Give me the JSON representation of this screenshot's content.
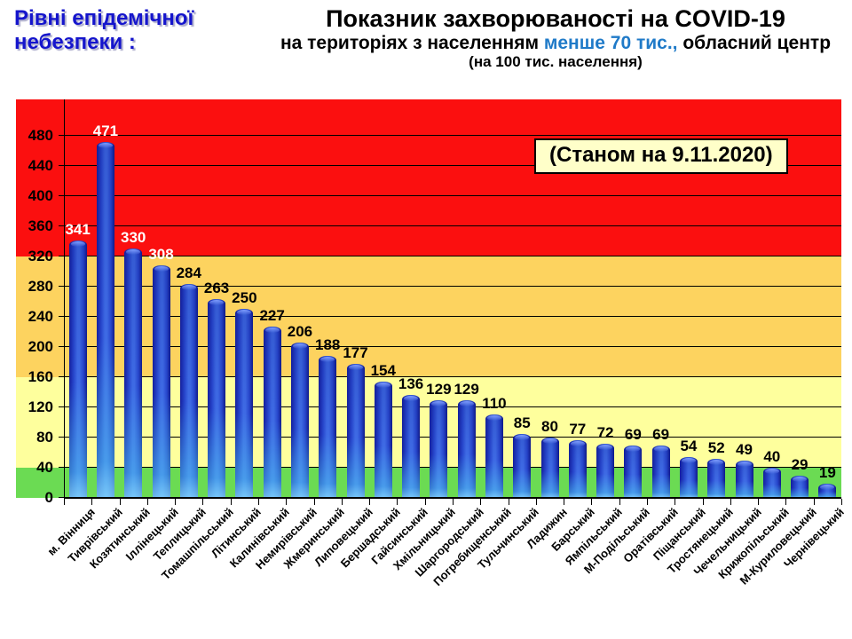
{
  "header": {
    "risk_label_line1": "Рівні епідемічної",
    "risk_label_line2": "небезпеки :",
    "risk_label_color": "#1515cc",
    "title": "Показник захворюваності на COVID-19",
    "subtitle_prefix": "на територіях з населенням ",
    "subtitle_highlight": "менше 70 тис.,",
    "subtitle_suffix": " обласний центр",
    "subtitle_highlight_color": "#1f7ac8",
    "subtitle_note": "(на 100  тис. населення)"
  },
  "annotation": {
    "date_label": "(Станом на 9.11.2020)",
    "bg_color": "#ffffc9"
  },
  "chart_data": {
    "type": "bar",
    "title": "Показник захворюваності на COVID-19 на територіях з населенням менше 70 тис., обласний центр (на 100 тис. населення)",
    "annotation": "(Станом на 9.11.2020)",
    "categories": [
      "м. Вінниця",
      "Тиврівський",
      "Козятинський",
      "Іллінецький",
      "Теплицький",
      "Томашпільський",
      "Літинський",
      "Калинівський",
      "Немирівський",
      "Жмеринський",
      "Липовецький",
      "Бершадський",
      "Гайсинський",
      "Хмільницький",
      "Шаргородський",
      "Погребищенський",
      "Тульчинський",
      "Ладижин",
      "Барський",
      "Ямпільський",
      "М-Подільський",
      "Оратівський",
      "Піщанський",
      "Тростянецький",
      "Чечельницький",
      "Крижопільський",
      "М-Куриловецький",
      "Чернівецький"
    ],
    "values": [
      341,
      471,
      330,
      308,
      284,
      263,
      250,
      227,
      206,
      188,
      177,
      154,
      136,
      129,
      129,
      110,
      85,
      80,
      77,
      72,
      69,
      69,
      54,
      52,
      49,
      40,
      29,
      19
    ],
    "xlabel": "",
    "ylabel": "",
    "ylim": [
      0,
      528
    ],
    "yticks": [
      0,
      40,
      80,
      120,
      160,
      200,
      240,
      280,
      320,
      360,
      400,
      440,
      480
    ],
    "grid": true,
    "legend_position": "none",
    "bar_colors": {
      "edge": "#141f9e",
      "center": "#3e6ae4",
      "bottom_glow": "#6fd0f2"
    },
    "value_label_colors": {
      "in_red_zone": "#ffffff",
      "default": "#000000"
    },
    "zones": [
      {
        "name": "green",
        "from": 0,
        "to": 40,
        "color": "#6bdb53"
      },
      {
        "name": "yellow",
        "from": 40,
        "to": 160,
        "color": "#feff9d"
      },
      {
        "name": "orange",
        "from": 160,
        "to": 320,
        "color": "#fdd35f"
      },
      {
        "name": "red",
        "from": 320,
        "to": 528,
        "color": "#fb0f0f"
      }
    ]
  }
}
